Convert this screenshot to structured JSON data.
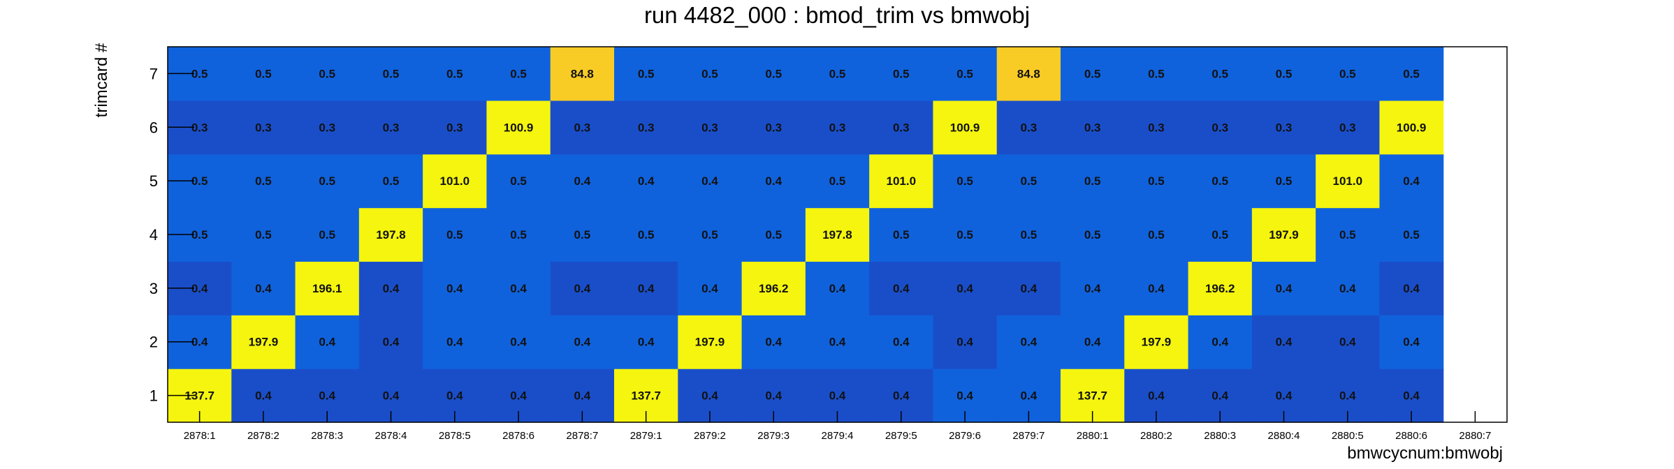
{
  "chart_data": {
    "type": "heatmap",
    "title": "run 4482_000 : bmod_trim vs bmwobj",
    "xlabel": "bmwcycnum:bmwobj",
    "ylabel": "trimcard #",
    "x_categories": [
      "2878:1",
      "2878:2",
      "2878:3",
      "2878:4",
      "2878:5",
      "2878:6",
      "2878:7",
      "2879:1",
      "2879:2",
      "2879:3",
      "2879:4",
      "2879:5",
      "2879:6",
      "2879:7",
      "2880:1",
      "2880:2",
      "2880:3",
      "2880:4",
      "2880:5",
      "2880:6",
      "2880:7"
    ],
    "y_categories": [
      "1",
      "2",
      "3",
      "4",
      "5",
      "6",
      "7"
    ],
    "values": [
      [
        "137.7",
        "0.4",
        "0.4",
        "0.4",
        "0.4",
        "0.4",
        "0.4",
        "137.7",
        "0.4",
        "0.4",
        "0.4",
        "0.4",
        "0.4",
        "0.4",
        "137.7",
        "0.4",
        "0.4",
        "0.4",
        "0.4",
        "0.4",
        null
      ],
      [
        "0.4",
        "197.9",
        "0.4",
        "0.4",
        "0.4",
        "0.4",
        "0.4",
        "0.4",
        "197.9",
        "0.4",
        "0.4",
        "0.4",
        "0.4",
        "0.4",
        "0.4",
        "197.9",
        "0.4",
        "0.4",
        "0.4",
        "0.4",
        null
      ],
      [
        "0.4",
        "0.4",
        "196.1",
        "0.4",
        "0.4",
        "0.4",
        "0.4",
        "0.4",
        "0.4",
        "196.2",
        "0.4",
        "0.4",
        "0.4",
        "0.4",
        "0.4",
        "0.4",
        "196.2",
        "0.4",
        "0.4",
        "0.4",
        null
      ],
      [
        "0.5",
        "0.5",
        "0.5",
        "197.8",
        "0.5",
        "0.5",
        "0.5",
        "0.5",
        "0.5",
        "0.5",
        "197.8",
        "0.5",
        "0.5",
        "0.5",
        "0.5",
        "0.5",
        "0.5",
        "197.9",
        "0.5",
        "0.5",
        null
      ],
      [
        "0.5",
        "0.5",
        "0.5",
        "0.5",
        "101.0",
        "0.5",
        "0.4",
        "0.4",
        "0.4",
        "0.4",
        "0.5",
        "101.0",
        "0.5",
        "0.5",
        "0.5",
        "0.5",
        "0.5",
        "0.5",
        "101.0",
        "0.4",
        null
      ],
      [
        "0.3",
        "0.3",
        "0.3",
        "0.3",
        "0.3",
        "100.9",
        "0.3",
        "0.3",
        "0.3",
        "0.3",
        "0.3",
        "0.3",
        "100.9",
        "0.3",
        "0.3",
        "0.3",
        "0.3",
        "0.3",
        "0.3",
        "100.9",
        null
      ],
      [
        "0.5",
        "0.5",
        "0.5",
        "0.5",
        "0.5",
        "0.5",
        "84.8",
        "0.5",
        "0.5",
        "0.5",
        "0.5",
        "0.5",
        "0.5",
        "84.8",
        "0.5",
        "0.5",
        "0.5",
        "0.5",
        "0.5",
        "0.5",
        null
      ]
    ],
    "shades": [
      [
        "yellow",
        "dark",
        "dark",
        "dark",
        "dark",
        "dark",
        "dark",
        "yellow",
        "dark",
        "dark",
        "dark",
        "dark",
        "mid",
        "mid",
        "yellow",
        "dark",
        "dark",
        "dark",
        "dark",
        "dark",
        null
      ],
      [
        "mid",
        "yellow",
        "mid",
        "dark",
        "mid",
        "mid",
        "mid",
        "mid",
        "yellow",
        "mid",
        "mid",
        "mid",
        "dark",
        "mid",
        "mid",
        "yellow",
        "mid",
        "dark",
        "dark",
        "mid",
        null
      ],
      [
        "dark",
        "mid",
        "yellow",
        "dark",
        "mid",
        "mid",
        "dark",
        "dark",
        "mid",
        "yellow",
        "mid",
        "dark",
        "dark",
        "dark",
        "mid",
        "mid",
        "yellow",
        "mid",
        "mid",
        "dark",
        null
      ],
      [
        "mid",
        "mid",
        "mid",
        "yellow",
        "mid",
        "mid",
        "mid",
        "mid",
        "mid",
        "mid",
        "yellow",
        "mid",
        "mid",
        "mid",
        "mid",
        "mid",
        "mid",
        "yellow",
        "mid",
        "mid",
        null
      ],
      [
        "mid",
        "mid",
        "mid",
        "mid",
        "yellow",
        "mid",
        "mid",
        "mid",
        "mid",
        "mid",
        "mid",
        "yellow",
        "mid",
        "mid",
        "mid",
        "mid",
        "mid",
        "mid",
        "yellow",
        "mid",
        null
      ],
      [
        "dark",
        "dark",
        "dark",
        "dark",
        "dark",
        "yellow",
        "dark",
        "dark",
        "dark",
        "dark",
        "dark",
        "dark",
        "yellow",
        "dark",
        "dark",
        "dark",
        "dark",
        "dark",
        "dark",
        "yellow",
        null
      ],
      [
        "mid",
        "mid",
        "mid",
        "mid",
        "mid",
        "mid",
        "amber",
        "mid",
        "mid",
        "mid",
        "mid",
        "mid",
        "mid",
        "amber",
        "mid",
        "mid",
        "mid",
        "mid",
        "mid",
        "mid",
        null
      ]
    ],
    "colors": {
      "yellow": "#f5f50f",
      "amber": "#f9cc25",
      "mid": "#1062dc",
      "dark": "#1a4ec9",
      "frame": "#000000",
      "background": "#ffffff"
    },
    "legend": "none",
    "grid": false
  }
}
